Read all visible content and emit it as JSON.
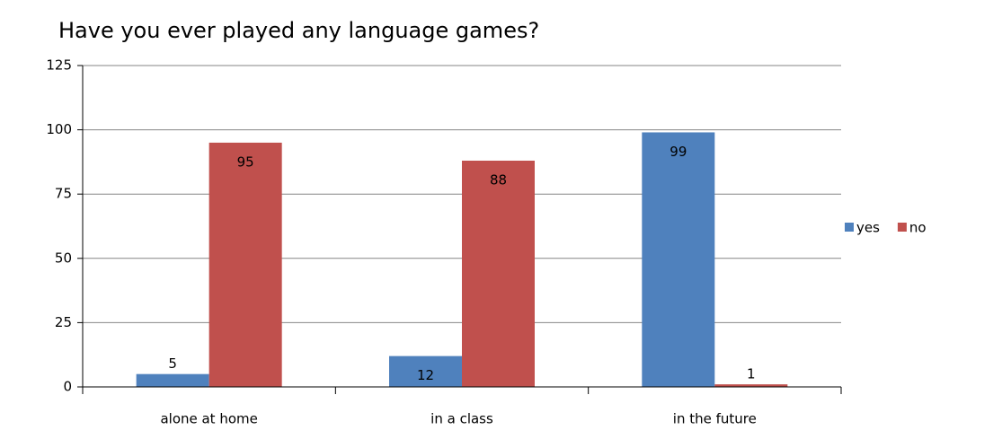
{
  "chart_data": {
    "type": "bar",
    "title": "Have you ever played any language games?",
    "categories": [
      "alone at home",
      "in a class",
      "in the future"
    ],
    "series": [
      {
        "name": "yes",
        "color": "#4f81bd",
        "values": [
          5,
          12,
          99
        ]
      },
      {
        "name": "no",
        "color": "#c0504d",
        "values": [
          95,
          88,
          1
        ]
      }
    ],
    "ylim": [
      0,
      125
    ],
    "yticks": [
      0,
      25,
      50,
      75,
      100,
      125
    ],
    "grid": true,
    "legend": "right"
  }
}
